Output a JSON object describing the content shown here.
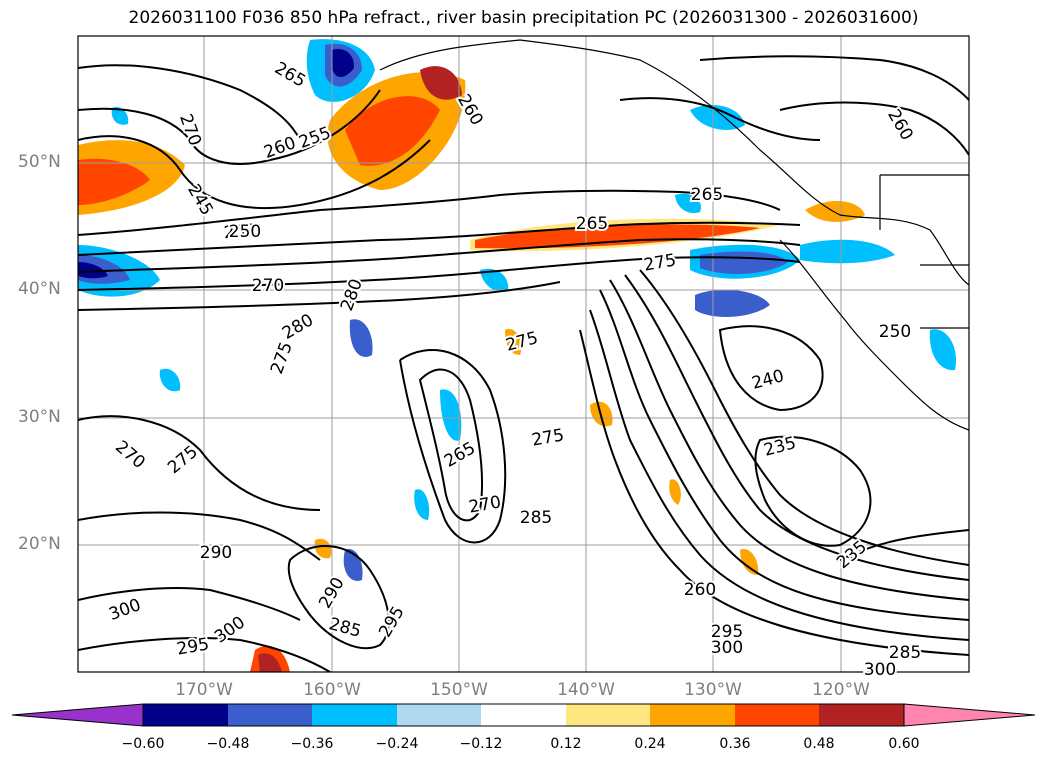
{
  "title": "2026031100 F036 850 hPa refract., river basin precipitation PC (2026031300 - 2026031600)",
  "map": {
    "lat_labels": [
      "50°N",
      "40°N",
      "30°N",
      "20°N"
    ],
    "lon_labels": [
      "170°W",
      "160°W",
      "150°W",
      "140°W",
      "130°W",
      "120°W"
    ],
    "contour_labels": [
      "265",
      "270",
      "250",
      "260",
      "255",
      "260",
      "245",
      "250",
      "270",
      "280",
      "280",
      "275",
      "275",
      "265",
      "265",
      "275",
      "260",
      "250",
      "240",
      "235",
      "235",
      "270",
      "275",
      "265",
      "270",
      "285",
      "275",
      "290",
      "290",
      "285",
      "295",
      "300",
      "295",
      "300",
      "260",
      "295",
      "300",
      "285",
      "300"
    ]
  },
  "colorbar": {
    "colors": [
      "#9932cc",
      "#00008b",
      "#3a5fcd",
      "#00bfff",
      "#add8f0",
      "#ffffff",
      "#ffe680",
      "#ffa500",
      "#ff4500",
      "#b22222",
      "#ff85b0"
    ],
    "labels": [
      "−0.60",
      "−0.48",
      "−0.36",
      "−0.24",
      "−0.12",
      "0.12",
      "0.24",
      "0.36",
      "0.48",
      "0.60"
    ]
  }
}
